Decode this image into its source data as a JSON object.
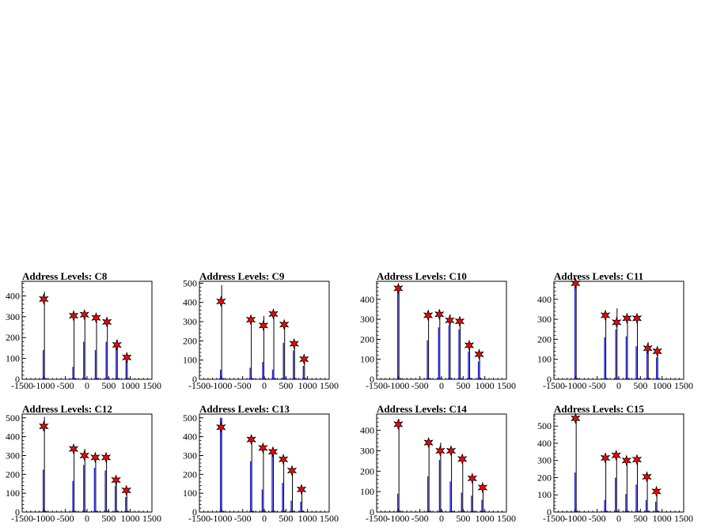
{
  "chart_data": [
    {
      "type": "histogram",
      "title": "Address Levels: C8",
      "xlim": [
        -1500,
        1500
      ],
      "ylim": [
        0,
        470
      ],
      "xticks": [
        "-1500",
        "-1000",
        "-500",
        "0",
        "500",
        "1000",
        "1500"
      ],
      "yticks": [
        0,
        100,
        200,
        300,
        400
      ],
      "spikes": [
        [
          -985,
          420,
          140
        ],
        [
          -300,
          320,
          60
        ],
        [
          -50,
          315,
          180
        ],
        [
          220,
          300,
          140
        ],
        [
          470,
          285,
          180
        ],
        [
          700,
          190,
          160
        ],
        [
          930,
          115,
          90
        ]
      ],
      "peaks": [
        [
          -1000,
          385
        ],
        [
          -310,
          305
        ],
        [
          -60,
          310
        ],
        [
          210,
          295
        ],
        [
          460,
          275
        ],
        [
          690,
          165
        ],
        [
          920,
          105
        ]
      ]
    },
    {
      "type": "histogram",
      "title": "Address Levels: C9",
      "xlim": [
        -1500,
        1500
      ],
      "ylim": [
        0,
        510
      ],
      "xticks": [
        "-1500",
        "-1000",
        "-500",
        "0",
        "500",
        "1000",
        "1500"
      ],
      "yticks": [
        0,
        100,
        200,
        300,
        400,
        500
      ],
      "spikes": [
        [
          -985,
          490,
          50
        ],
        [
          -300,
          325,
          60
        ],
        [
          -10,
          330,
          90
        ],
        [
          220,
          320,
          50
        ],
        [
          470,
          300,
          190
        ],
        [
          700,
          185,
          150
        ],
        [
          930,
          110,
          70
        ]
      ],
      "peaks": [
        [
          -1000,
          405
        ],
        [
          -310,
          310
        ],
        [
          -20,
          280
        ],
        [
          210,
          340
        ],
        [
          460,
          285
        ],
        [
          690,
          185
        ],
        [
          920,
          105
        ]
      ]
    },
    {
      "type": "histogram",
      "title": "Address Levels: C10",
      "xlim": [
        -1500,
        1500
      ],
      "ylim": [
        0,
        490
      ],
      "xticks": [
        "-1500",
        "-1000",
        "-500",
        "0",
        "500",
        "1000",
        "1500"
      ],
      "yticks": [
        0,
        100,
        200,
        300,
        400
      ],
      "spikes": [
        [
          -985,
          470,
          460
        ],
        [
          -300,
          345,
          195
        ],
        [
          -40,
          345,
          260
        ],
        [
          200,
          325,
          270
        ],
        [
          430,
          300,
          250
        ],
        [
          650,
          180,
          140
        ],
        [
          880,
          130,
          90
        ]
      ],
      "peaks": [
        [
          -1000,
          455
        ],
        [
          -310,
          320
        ],
        [
          -50,
          325
        ],
        [
          190,
          295
        ],
        [
          420,
          290
        ],
        [
          640,
          170
        ],
        [
          870,
          125
        ]
      ]
    },
    {
      "type": "histogram",
      "title": "Address Levels: C11",
      "xlim": [
        -1500,
        1500
      ],
      "ylim": [
        0,
        490
      ],
      "xticks": [
        "-1500",
        "-1000",
        "-500",
        "0",
        "500",
        "1000",
        "1500"
      ],
      "yticks": [
        0,
        100,
        200,
        300,
        400
      ],
      "spikes": [
        [
          -985,
          490,
          470
        ],
        [
          -300,
          335,
          210
        ],
        [
          -40,
          355,
          250
        ],
        [
          200,
          320,
          215
        ],
        [
          430,
          320,
          165
        ],
        [
          680,
          185,
          145
        ],
        [
          900,
          150,
          110
        ]
      ],
      "peaks": [
        [
          -1000,
          480
        ],
        [
          -310,
          320
        ],
        [
          -50,
          285
        ],
        [
          190,
          305
        ],
        [
          420,
          305
        ],
        [
          670,
          155
        ],
        [
          890,
          140
        ]
      ]
    },
    {
      "type": "histogram",
      "title": "Address Levels: C12",
      "xlim": [
        -1500,
        1500
      ],
      "ylim": [
        0,
        520
      ],
      "xticks": [
        "-1500",
        "-1000",
        "-500",
        "0",
        "500",
        "1000",
        "1500"
      ],
      "yticks": [
        0,
        100,
        200,
        300,
        400,
        500
      ],
      "spikes": [
        [
          -985,
          505,
          225
        ],
        [
          -300,
          345,
          165
        ],
        [
          -50,
          335,
          250
        ],
        [
          200,
          305,
          235
        ],
        [
          450,
          305,
          220
        ],
        [
          680,
          175,
          140
        ],
        [
          920,
          120,
          80
        ]
      ],
      "peaks": [
        [
          -1000,
          455
        ],
        [
          -310,
          335
        ],
        [
          -60,
          300
        ],
        [
          190,
          290
        ],
        [
          440,
          290
        ],
        [
          670,
          170
        ],
        [
          910,
          115
        ]
      ]
    },
    {
      "type": "histogram",
      "title": "Address Levels: C13",
      "xlim": [
        -1500,
        1500
      ],
      "ylim": [
        0,
        520
      ],
      "xticks": [
        "-1500",
        "-1000",
        "-500",
        "0",
        "500",
        "1000",
        "1500"
      ],
      "yticks": [
        0,
        100,
        200,
        300,
        400,
        500
      ],
      "spikes": [
        [
          -985,
          500,
          500
        ],
        [
          -290,
          385,
          270
        ],
        [
          -20,
          350,
          120
        ],
        [
          210,
          330,
          320
        ],
        [
          450,
          295,
          155
        ],
        [
          650,
          225,
          60
        ],
        [
          870,
          125,
          55
        ]
      ],
      "peaks": [
        [
          -1000,
          450
        ],
        [
          -300,
          385
        ],
        [
          -30,
          340
        ],
        [
          200,
          320
        ],
        [
          440,
          280
        ],
        [
          640,
          220
        ],
        [
          860,
          120
        ]
      ]
    },
    {
      "type": "histogram",
      "title": "Address Levels: C14",
      "xlim": [
        -1500,
        1500
      ],
      "ylim": [
        0,
        480
      ],
      "xticks": [
        "-1500",
        "-1000",
        "-500",
        "0",
        "500",
        "1000",
        "1500"
      ],
      "yticks": [
        0,
        100,
        200,
        300,
        400
      ],
      "spikes": [
        [
          -985,
          455,
          90
        ],
        [
          -290,
          345,
          175
        ],
        [
          -20,
          340,
          255
        ],
        [
          230,
          310,
          150
        ],
        [
          490,
          280,
          95
        ],
        [
          720,
          180,
          80
        ],
        [
          960,
          130,
          60
        ]
      ],
      "peaks": [
        [
          -1000,
          430
        ],
        [
          -300,
          340
        ],
        [
          -30,
          300
        ],
        [
          220,
          300
        ],
        [
          480,
          260
        ],
        [
          710,
          165
        ],
        [
          950,
          120
        ]
      ]
    },
    {
      "type": "histogram",
      "title": "Address Levels: C15",
      "xlim": [
        -1500,
        1500
      ],
      "ylim": [
        0,
        570
      ],
      "xticks": [
        "-1500",
        "-1000",
        "-500",
        "0",
        "500",
        "1000",
        "1500"
      ],
      "yticks": [
        0,
        100,
        200,
        300,
        400,
        500
      ],
      "spikes": [
        [
          -985,
          560,
          230
        ],
        [
          -300,
          335,
          70
        ],
        [
          -50,
          330,
          200
        ],
        [
          190,
          320,
          105
        ],
        [
          430,
          310,
          160
        ],
        [
          660,
          210,
          70
        ],
        [
          880,
          130,
          60
        ]
      ],
      "peaks": [
        [
          -1000,
          545
        ],
        [
          -310,
          315
        ],
        [
          -60,
          330
        ],
        [
          180,
          300
        ],
        [
          420,
          305
        ],
        [
          650,
          205
        ],
        [
          870,
          120
        ]
      ]
    }
  ]
}
